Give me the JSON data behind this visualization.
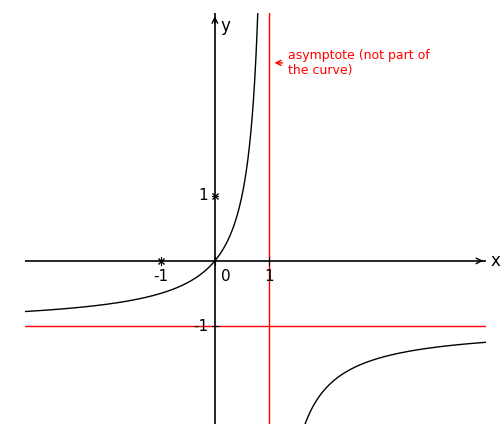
{
  "annotation_text": "asymptote (not part of\nthe curve)",
  "annotation_color": "red",
  "curve_color": "black",
  "asymptote_v_color": "red",
  "asymptote_h_color": "red",
  "axis_color": "black",
  "background_color": "white",
  "xlim": [
    -3.5,
    5.0
  ],
  "ylim": [
    -2.5,
    3.8
  ],
  "xticks": [
    -1,
    0,
    1
  ],
  "yticks": [
    -1,
    1
  ],
  "xlabel": "x",
  "ylabel": "y",
  "vertical_asymptote_x": 1,
  "horizontal_asymptote_y": -1,
  "x_cross_mark": -1,
  "y_cross_mark": 1,
  "figsize": [
    5.01,
    4.46
  ],
  "dpi": 100
}
